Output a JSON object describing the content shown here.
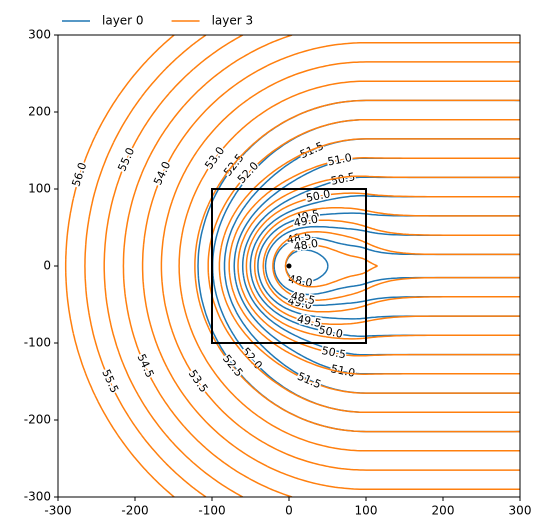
{
  "chart_data": {
    "type": "contour",
    "xlim": [
      -300,
      300
    ],
    "ylim": [
      -300,
      300
    ],
    "xticks": [
      -300,
      -200,
      -100,
      0,
      100,
      200,
      300
    ],
    "yticks": [
      -300,
      -200,
      -100,
      0,
      100,
      200,
      300
    ],
    "legend": "upper left",
    "rectangle": {
      "x": [
        -100,
        100
      ],
      "y": [
        -100,
        100
      ],
      "color": "#000000"
    },
    "well": {
      "x": 0,
      "y": 0,
      "color": "#000000"
    },
    "series": [
      {
        "name": "layer 0",
        "color": "#1f77b4",
        "levels": [
          48.0,
          48.5,
          49.0,
          49.5,
          50.0,
          50.5,
          51.0,
          51.5,
          52.0,
          52.5
        ],
        "value_labels": [
          "48.0",
          "48.5",
          "49.0",
          "49.5",
          "50.0",
          "50.5",
          "51.0",
          "51.5",
          "52.0",
          "52.5"
        ]
      },
      {
        "name": "layer 3",
        "color": "#ff7f0e",
        "levels": [
          48.0,
          48.5,
          49.0,
          49.5,
          50.0,
          50.5,
          51.0,
          51.5,
          52.0,
          52.5,
          53.0,
          53.5,
          54.0,
          54.5,
          55.0,
          55.5,
          56.0
        ],
        "value_labels": [
          "48.0",
          "48.5",
          "49.0",
          "49.5",
          "50.0",
          "50.5",
          "51.0",
          "51.5",
          "52.0",
          "52.5",
          "53.0",
          "53.5",
          "54.0",
          "54.5",
          "55.0",
          "55.5",
          "56.0"
        ]
      }
    ]
  }
}
